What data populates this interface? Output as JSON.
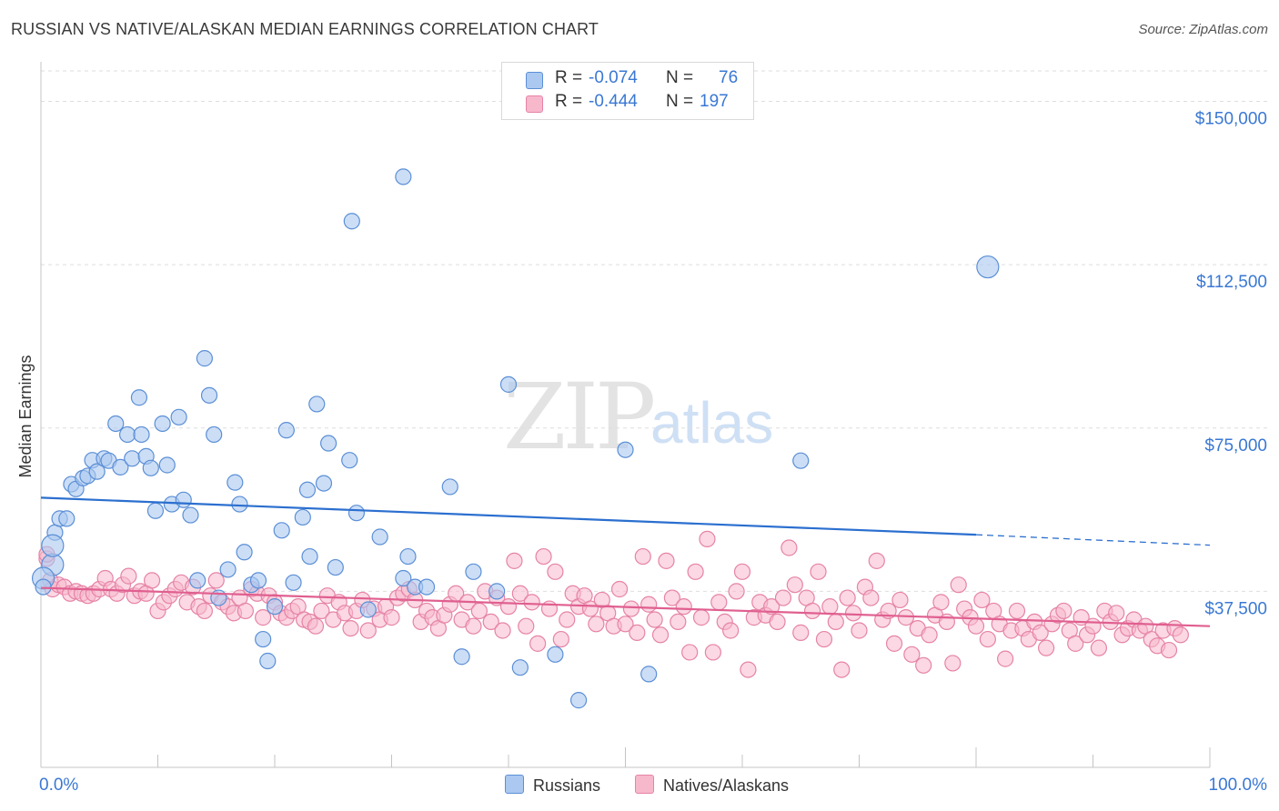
{
  "title": "RUSSIAN VS NATIVE/ALASKAN MEDIAN EARNINGS CORRELATION CHART",
  "source": "Source: ZipAtlas.com",
  "watermark": {
    "zip": "ZIP",
    "atlas": "atlas"
  },
  "legend": {
    "rows": [
      {
        "r_label": "R =",
        "r_value": "-0.074",
        "n_label": "N =",
        "n_value": "76",
        "color": "#aac8f0"
      },
      {
        "r_label": "R =",
        "r_value": "-0.444",
        "n_label": "N =",
        "n_value": "197",
        "color": "#f7b8cc"
      }
    ]
  },
  "bottom_legend": {
    "russians": "Russians",
    "natives": "Natives/Alaskans"
  },
  "colors": {
    "russian_fill": "#aac8f0",
    "russian_stroke": "#5b8fd6",
    "russian_line": "#2b6fcf",
    "native_fill": "#f7b8cc",
    "native_stroke": "#e683a6",
    "native_line": "#e05f8f",
    "tick_label": "#3a78d4",
    "grid": "#dedede"
  },
  "chart_data": {
    "type": "scatter",
    "title": "RUSSIAN VS NATIVE/ALASKAN MEDIAN EARNINGS CORRELATION CHART",
    "xlabel": "",
    "ylabel": "Median Earnings",
    "xlim": [
      0,
      100
    ],
    "ylim": [
      0,
      157000
    ],
    "x_ticks": [
      "0.0%",
      "100.0%"
    ],
    "y_ticks": [
      {
        "value": 37500,
        "label": "$37,500"
      },
      {
        "value": 75000,
        "label": "$75,000"
      },
      {
        "value": 112500,
        "label": "$112,500"
      },
      {
        "value": 150000,
        "label": "$150,000"
      }
    ],
    "grid": true,
    "legend_position": "top-center",
    "series": [
      {
        "name": "Russians",
        "trend": {
          "x0": 0,
          "y0": 59000,
          "x1": 80,
          "y1": 50500,
          "dash_to_x": 100,
          "dash_to_y": 48100
        },
        "points": [
          [
            1.0,
            43600
          ],
          [
            1.2,
            51000
          ],
          [
            1.6,
            54200
          ],
          [
            2.2,
            54200
          ],
          [
            2.6,
            62100
          ],
          [
            3.0,
            61000
          ],
          [
            3.6,
            63500
          ],
          [
            4.0,
            64000
          ],
          [
            4.4,
            67600
          ],
          [
            4.8,
            65000
          ],
          [
            5.4,
            68000
          ],
          [
            5.8,
            67500
          ],
          [
            6.4,
            76000
          ],
          [
            6.8,
            66000
          ],
          [
            7.4,
            73500
          ],
          [
            7.8,
            68000
          ],
          [
            8.4,
            82000
          ],
          [
            8.6,
            73500
          ],
          [
            9.0,
            68500
          ],
          [
            9.4,
            65800
          ],
          [
            9.8,
            56000
          ],
          [
            10.4,
            76000
          ],
          [
            10.8,
            66500
          ],
          [
            11.2,
            57500
          ],
          [
            11.8,
            77500
          ],
          [
            12.2,
            58500
          ],
          [
            12.8,
            55000
          ],
          [
            13.4,
            40000
          ],
          [
            14.0,
            91000
          ],
          [
            14.4,
            82500
          ],
          [
            14.8,
            73500
          ],
          [
            15.2,
            36000
          ],
          [
            16.0,
            42500
          ],
          [
            16.6,
            62500
          ],
          [
            17.0,
            57500
          ],
          [
            17.4,
            46500
          ],
          [
            18.0,
            39000
          ],
          [
            18.6,
            40000
          ],
          [
            19.0,
            26500
          ],
          [
            19.4,
            21500
          ],
          [
            20.0,
            34000
          ],
          [
            20.6,
            51500
          ],
          [
            21.0,
            74500
          ],
          [
            21.6,
            39500
          ],
          [
            22.4,
            54500
          ],
          [
            22.8,
            60800
          ],
          [
            23.0,
            45500
          ],
          [
            23.6,
            80500
          ],
          [
            24.2,
            62300
          ],
          [
            24.6,
            71500
          ],
          [
            25.2,
            43000
          ],
          [
            26.4,
            67600
          ],
          [
            26.6,
            122500
          ],
          [
            27.0,
            55500
          ],
          [
            28.0,
            33300
          ],
          [
            29.0,
            50000
          ],
          [
            31.0,
            40500
          ],
          [
            31.4,
            45500
          ],
          [
            32.0,
            38500
          ],
          [
            31.0,
            132700
          ],
          [
            33.0,
            38500
          ],
          [
            35.0,
            61500
          ],
          [
            36.0,
            22500
          ],
          [
            37.0,
            42000
          ],
          [
            39.0,
            37500
          ],
          [
            40.0,
            85000
          ],
          [
            41.0,
            20000
          ],
          [
            44.0,
            23000
          ],
          [
            46.0,
            12500
          ],
          [
            50.0,
            70000
          ],
          [
            52.0,
            18500
          ],
          [
            65.0,
            67500
          ],
          [
            81.0,
            112000
          ],
          [
            0.2,
            40500
          ],
          [
            0.2,
            38500
          ],
          [
            1.0,
            48000
          ]
        ]
      },
      {
        "name": "Natives/Alaskans",
        "trend": {
          "x0": 0,
          "y0": 38300,
          "x1": 100,
          "y1": 29500
        },
        "points": [
          [
            0.5,
            45000
          ],
          [
            0.5,
            46000
          ],
          [
            0.8,
            40000
          ],
          [
            1.0,
            38000
          ],
          [
            1.5,
            39000
          ],
          [
            2.0,
            38500
          ],
          [
            2.5,
            37000
          ],
          [
            3.0,
            37500
          ],
          [
            3.5,
            37000
          ],
          [
            4.0,
            36500
          ],
          [
            4.5,
            37000
          ],
          [
            5.0,
            38000
          ],
          [
            5.5,
            40500
          ],
          [
            6.0,
            38000
          ],
          [
            6.5,
            37000
          ],
          [
            7.0,
            39000
          ],
          [
            7.5,
            41000
          ],
          [
            8.0,
            36500
          ],
          [
            8.5,
            37500
          ],
          [
            9.0,
            37000
          ],
          [
            9.5,
            40000
          ],
          [
            10.0,
            33000
          ],
          [
            10.5,
            35000
          ],
          [
            11.0,
            36500
          ],
          [
            11.5,
            38000
          ],
          [
            12.0,
            39500
          ],
          [
            12.5,
            35000
          ],
          [
            13.0,
            38500
          ],
          [
            13.5,
            34000
          ],
          [
            14.0,
            33000
          ],
          [
            14.5,
            36500
          ],
          [
            15.0,
            40000
          ],
          [
            15.5,
            35000
          ],
          [
            16.0,
            34000
          ],
          [
            16.5,
            32500
          ],
          [
            17.0,
            36000
          ],
          [
            17.5,
            33000
          ],
          [
            18.0,
            38000
          ],
          [
            18.5,
            37000
          ],
          [
            19.0,
            31500
          ],
          [
            19.5,
            36500
          ],
          [
            20.0,
            35000
          ],
          [
            20.5,
            32500
          ],
          [
            21.0,
            31500
          ],
          [
            21.5,
            33000
          ],
          [
            22.0,
            34000
          ],
          [
            22.5,
            31000
          ],
          [
            23.0,
            30500
          ],
          [
            23.5,
            29500
          ],
          [
            24.0,
            33000
          ],
          [
            24.5,
            36500
          ],
          [
            25.0,
            31000
          ],
          [
            25.5,
            35000
          ],
          [
            26.0,
            32500
          ],
          [
            26.5,
            29000
          ],
          [
            27.0,
            33000
          ],
          [
            27.5,
            35500
          ],
          [
            28.0,
            28500
          ],
          [
            28.5,
            33500
          ],
          [
            29.0,
            31000
          ],
          [
            29.5,
            34000
          ],
          [
            30.0,
            31500
          ],
          [
            30.5,
            36000
          ],
          [
            31.0,
            37000
          ],
          [
            31.5,
            38000
          ],
          [
            32.0,
            35500
          ],
          [
            32.5,
            30500
          ],
          [
            33.0,
            33000
          ],
          [
            33.5,
            31500
          ],
          [
            34.0,
            29000
          ],
          [
            34.5,
            32000
          ],
          [
            35.0,
            34500
          ],
          [
            35.5,
            37000
          ],
          [
            36.0,
            31000
          ],
          [
            36.5,
            35000
          ],
          [
            37.0,
            29500
          ],
          [
            37.5,
            33000
          ],
          [
            38.0,
            37500
          ],
          [
            38.5,
            30500
          ],
          [
            39.0,
            36000
          ],
          [
            39.5,
            28500
          ],
          [
            40.0,
            34000
          ],
          [
            40.5,
            44500
          ],
          [
            41.0,
            37000
          ],
          [
            41.5,
            29500
          ],
          [
            42.0,
            35000
          ],
          [
            42.5,
            25500
          ],
          [
            43.0,
            45500
          ],
          [
            43.5,
            33500
          ],
          [
            44.0,
            42000
          ],
          [
            44.5,
            26500
          ],
          [
            45.0,
            31000
          ],
          [
            45.5,
            37000
          ],
          [
            46.0,
            34000
          ],
          [
            46.5,
            36500
          ],
          [
            47.0,
            33500
          ],
          [
            47.5,
            30000
          ],
          [
            48.0,
            35500
          ],
          [
            48.5,
            32500
          ],
          [
            49.0,
            29500
          ],
          [
            49.5,
            38000
          ],
          [
            50.0,
            30000
          ],
          [
            50.5,
            33500
          ],
          [
            51.0,
            28000
          ],
          [
            51.5,
            45500
          ],
          [
            52.0,
            34500
          ],
          [
            52.5,
            31000
          ],
          [
            53.0,
            27500
          ],
          [
            53.5,
            44500
          ],
          [
            54.0,
            36000
          ],
          [
            54.5,
            30500
          ],
          [
            55.0,
            34000
          ],
          [
            55.5,
            23500
          ],
          [
            56.0,
            42000
          ],
          [
            56.5,
            31500
          ],
          [
            57.0,
            49500
          ],
          [
            57.5,
            23500
          ],
          [
            58.0,
            35000
          ],
          [
            58.5,
            30500
          ],
          [
            59.0,
            28500
          ],
          [
            59.5,
            37500
          ],
          [
            60.0,
            42000
          ],
          [
            60.5,
            19500
          ],
          [
            61.0,
            31500
          ],
          [
            61.5,
            35000
          ],
          [
            62.0,
            32000
          ],
          [
            62.5,
            34000
          ],
          [
            63.0,
            30500
          ],
          [
            63.5,
            36000
          ],
          [
            64.0,
            47500
          ],
          [
            64.5,
            39000
          ],
          [
            65.0,
            28000
          ],
          [
            65.5,
            36000
          ],
          [
            66.0,
            33000
          ],
          [
            66.5,
            42000
          ],
          [
            67.0,
            26500
          ],
          [
            67.5,
            34000
          ],
          [
            68.0,
            30500
          ],
          [
            68.5,
            19500
          ],
          [
            69.0,
            36000
          ],
          [
            69.5,
            32500
          ],
          [
            70.0,
            28500
          ],
          [
            70.5,
            38500
          ],
          [
            71.0,
            36000
          ],
          [
            71.5,
            44500
          ],
          [
            72.0,
            31000
          ],
          [
            72.5,
            33000
          ],
          [
            73.0,
            25500
          ],
          [
            73.5,
            35500
          ],
          [
            74.0,
            31500
          ],
          [
            74.5,
            23000
          ],
          [
            75.0,
            29000
          ],
          [
            75.5,
            20500
          ],
          [
            76.0,
            27500
          ],
          [
            76.5,
            32000
          ],
          [
            77.0,
            35000
          ],
          [
            77.5,
            30500
          ],
          [
            78.0,
            21000
          ],
          [
            78.5,
            39000
          ],
          [
            79.0,
            33500
          ],
          [
            79.5,
            31500
          ],
          [
            80.0,
            29500
          ],
          [
            80.5,
            35500
          ],
          [
            81.0,
            26500
          ],
          [
            81.5,
            33000
          ],
          [
            82.0,
            30000
          ],
          [
            82.5,
            22000
          ],
          [
            83.0,
            28500
          ],
          [
            83.5,
            33000
          ],
          [
            84.0,
            29000
          ],
          [
            84.5,
            26500
          ],
          [
            85.0,
            30500
          ],
          [
            85.5,
            28000
          ],
          [
            86.0,
            24500
          ],
          [
            86.5,
            30000
          ],
          [
            87.0,
            32000
          ],
          [
            87.5,
            33000
          ],
          [
            88.0,
            28500
          ],
          [
            88.5,
            25500
          ],
          [
            89.0,
            31500
          ],
          [
            89.5,
            27500
          ],
          [
            90.0,
            29500
          ],
          [
            90.5,
            24500
          ],
          [
            91.0,
            33000
          ],
          [
            91.5,
            30500
          ],
          [
            92.0,
            32500
          ],
          [
            92.5,
            27500
          ],
          [
            93.0,
            29000
          ],
          [
            93.5,
            31000
          ],
          [
            94.0,
            28500
          ],
          [
            94.5,
            29500
          ],
          [
            95.0,
            26500
          ],
          [
            95.5,
            25000
          ],
          [
            96.0,
            28500
          ],
          [
            96.5,
            24000
          ],
          [
            97.0,
            29000
          ],
          [
            97.5,
            27500
          ]
        ]
      }
    ]
  }
}
